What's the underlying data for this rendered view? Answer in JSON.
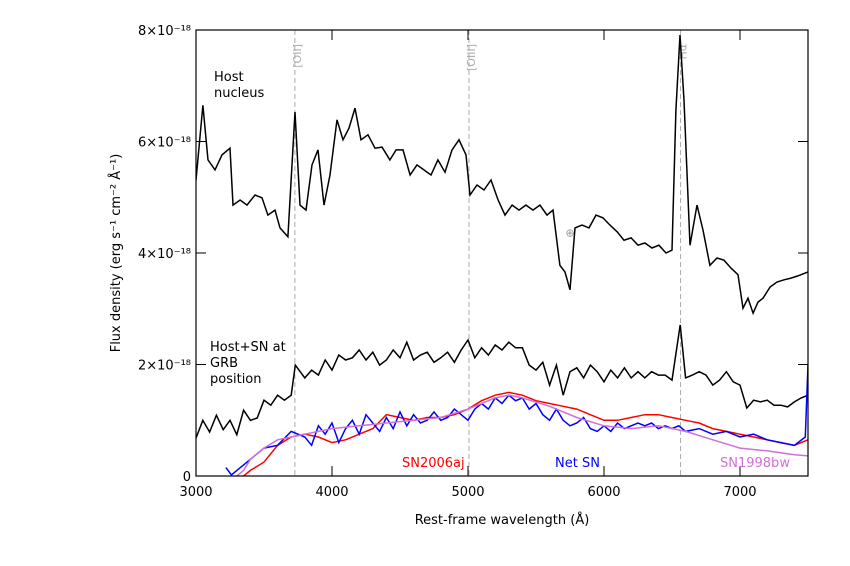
{
  "chart_data": {
    "type": "line",
    "xlabel": "Rest-frame wavelength (Å)",
    "ylabel": "Flux density (erg s⁻¹ cm⁻² Å⁻¹)",
    "xlim": [
      3000,
      7500
    ],
    "xticks": [
      3000,
      4000,
      5000,
      6000,
      7000
    ],
    "ylim": [
      0,
      8e-18
    ],
    "yticks": [
      0,
      {
        "value": 2e-18,
        "label": "2×10⁻¹⁸"
      },
      {
        "value": 4e-18,
        "label": "4×10⁻¹⁸"
      },
      {
        "value": 6e-18,
        "label": "6×10⁻¹⁸"
      },
      {
        "value": 8e-18,
        "label": "8×10⁻¹⁸"
      }
    ],
    "lines": [
      {
        "label": "[OII]",
        "x": 3727
      },
      {
        "label": "[OIII]",
        "x": 5007
      },
      {
        "label": "Hα",
        "x": 6563
      }
    ],
    "annotations": [
      {
        "text": "⊕",
        "x": 5750,
        "y": 4.3e-18
      }
    ],
    "series": [
      {
        "name": "Host nucleus",
        "color": "#000000",
        "x": [
          3000,
          3051,
          3088,
          3140,
          3191,
          3250,
          3272,
          3324,
          3375,
          3434,
          3485,
          3529,
          3581,
          3618,
          3676,
          3728,
          3765,
          3809,
          3853,
          3897,
          3941,
          3985,
          4037,
          4081,
          4125,
          4169,
          4213,
          4265,
          4316,
          4368,
          4426,
          4471,
          4522,
          4574,
          4625,
          4676,
          4728,
          4779,
          4831,
          4882,
          4934,
          4985,
          5015,
          5066,
          5118,
          5169,
          5221,
          5272,
          5324,
          5375,
          5426,
          5478,
          5529,
          5581,
          5625,
          5676,
          5713,
          5750,
          5787,
          5838,
          5890,
          5941,
          5993,
          6044,
          6096,
          6147,
          6199,
          6250,
          6301,
          6353,
          6404,
          6456,
          6500,
          6529,
          6559,
          6588,
          6632,
          6684,
          6728,
          6779,
          6831,
          6882,
          6934,
          6985,
          7022,
          7059,
          7096,
          7132,
          7169,
          7221,
          7272,
          7324,
          7375,
          7426,
          7500
        ],
        "values": [
          5.31e-18,
          6.65e-18,
          5.67e-18,
          5.49e-18,
          5.76e-18,
          5.88e-18,
          4.86e-18,
          4.95e-18,
          4.86e-18,
          5.04e-18,
          4.99e-18,
          4.68e-18,
          4.77e-18,
          4.45e-18,
          4.29e-18,
          6.53e-18,
          4.86e-18,
          4.77e-18,
          5.58e-18,
          5.85e-18,
          4.86e-18,
          5.4e-18,
          6.39e-18,
          6.03e-18,
          6.24e-18,
          6.6e-18,
          6.03e-18,
          6.12e-18,
          5.88e-18,
          5.9e-18,
          5.67e-18,
          5.85e-18,
          5.85e-18,
          5.4e-18,
          5.58e-18,
          5.49e-18,
          5.4e-18,
          5.67e-18,
          5.45e-18,
          5.85e-18,
          6.03e-18,
          5.76e-18,
          5.04e-18,
          5.22e-18,
          5.13e-18,
          5.31e-18,
          4.95e-18,
          4.68e-18,
          4.86e-18,
          4.77e-18,
          4.86e-18,
          4.77e-18,
          4.86e-18,
          4.68e-18,
          4.77e-18,
          3.78e-18,
          3.66e-18,
          3.34e-18,
          4.45e-18,
          4.5e-18,
          4.45e-18,
          4.68e-18,
          4.63e-18,
          4.5e-18,
          4.38e-18,
          4.23e-18,
          4.27e-18,
          4.14e-18,
          4.18e-18,
          4.09e-18,
          4.14e-18,
          4e-18,
          4.05e-18,
          6.56e-18,
          7.91e-18,
          6.74e-18,
          4.14e-18,
          4.86e-18,
          4.41e-18,
          3.78e-18,
          3.91e-18,
          3.87e-18,
          3.73e-18,
          3.61e-18,
          3.01e-18,
          3.19e-18,
          2.92e-18,
          3.12e-18,
          3.19e-18,
          3.39e-18,
          3.48e-18,
          3.52e-18,
          3.55e-18,
          3.59e-18,
          3.66e-18
        ]
      },
      {
        "name": "Host+SN at GRB position",
        "color": "#000000",
        "x": [
          3000,
          3050,
          3100,
          3150,
          3200,
          3250,
          3300,
          3350,
          3400,
          3450,
          3500,
          3550,
          3600,
          3650,
          3700,
          3730,
          3800,
          3850,
          3900,
          3950,
          4000,
          4050,
          4100,
          4150,
          4200,
          4250,
          4300,
          4350,
          4400,
          4450,
          4500,
          4550,
          4600,
          4650,
          4700,
          4750,
          4800,
          4850,
          4900,
          4950,
          5000,
          5050,
          5100,
          5150,
          5200,
          5250,
          5300,
          5350,
          5400,
          5450,
          5500,
          5550,
          5600,
          5650,
          5700,
          5750,
          5800,
          5850,
          5900,
          5950,
          6000,
          6050,
          6100,
          6150,
          6200,
          6250,
          6300,
          6350,
          6400,
          6450,
          6500,
          6560,
          6600,
          6650,
          6700,
          6750,
          6800,
          6850,
          6900,
          6950,
          7000,
          7050,
          7100,
          7150,
          7200,
          7250,
          7300,
          7350,
          7400,
          7450,
          7500
        ],
        "values": [
          6.8e-19,
          1e-18,
          7.9e-19,
          1.09e-18,
          8.3e-19,
          1e-18,
          7.4e-19,
          1.18e-18,
          1e-18,
          1.04e-18,
          1.36e-18,
          1.27e-18,
          1.45e-18,
          1.36e-18,
          1.45e-18,
          1.99e-18,
          1.76e-18,
          1.9e-18,
          1.81e-18,
          2.08e-18,
          1.9e-18,
          2.17e-18,
          2.08e-18,
          2.12e-18,
          2.26e-18,
          2.08e-18,
          2.22e-18,
          1.99e-18,
          2.08e-18,
          2.26e-18,
          2.12e-18,
          2.4e-18,
          2.08e-18,
          2.17e-18,
          2.22e-18,
          2.04e-18,
          2.12e-18,
          2.22e-18,
          2.04e-18,
          2.26e-18,
          2.44e-18,
          2.12e-18,
          2.3e-18,
          2.17e-18,
          2.35e-18,
          2.26e-18,
          2.4e-18,
          2.3e-18,
          2.3e-18,
          1.99e-18,
          1.9e-18,
          2.04e-18,
          1.63e-18,
          1.99e-18,
          1.45e-18,
          1.87e-18,
          1.94e-18,
          1.76e-18,
          1.99e-18,
          1.87e-18,
          1.69e-18,
          1.9e-18,
          1.76e-18,
          1.94e-18,
          1.76e-18,
          1.87e-18,
          1.76e-18,
          1.87e-18,
          1.81e-18,
          1.81e-18,
          1.72e-18,
          2.71e-18,
          1.76e-18,
          1.81e-18,
          1.87e-18,
          1.81e-18,
          1.63e-18,
          1.72e-18,
          1.87e-18,
          1.69e-18,
          1.63e-18,
          1.22e-18,
          1.36e-18,
          1.33e-18,
          1.36e-18,
          1.27e-18,
          1.27e-18,
          1.24e-18,
          1.33e-18,
          1.4e-18,
          1.45e-18
        ]
      },
      {
        "name": "SN2006aj",
        "color": "#ff0000",
        "x": [
          3350,
          3400,
          3500,
          3600,
          3700,
          3800,
          3900,
          4000,
          4100,
          4200,
          4300,
          4400,
          4500,
          4600,
          4700,
          4800,
          4900,
          5000,
          5100,
          5200,
          5300,
          5400,
          5500,
          5600,
          5700,
          5800,
          5900,
          6000,
          6100,
          6200,
          6300,
          6400,
          6500,
          6600,
          6700,
          6800,
          6900,
          7000,
          7100,
          7200,
          7300,
          7400,
          7500
        ],
        "values": [
          0,
          1e-19,
          2.5e-19,
          5.5e-19,
          7e-19,
          7.5e-19,
          7e-19,
          6e-19,
          6.5e-19,
          7.5e-19,
          8.5e-19,
          1.1e-18,
          1.05e-18,
          1e-18,
          1.05e-18,
          1.05e-18,
          1.1e-18,
          1.2e-18,
          1.35e-18,
          1.45e-18,
          1.5e-18,
          1.45e-18,
          1.35e-18,
          1.3e-18,
          1.25e-18,
          1.2e-18,
          1.1e-18,
          1e-18,
          1e-18,
          1.05e-18,
          1.1e-18,
          1.1e-18,
          1.05e-18,
          1e-18,
          9.5e-19,
          8.5e-19,
          8e-19,
          7.5e-19,
          7e-19,
          6.5e-19,
          6e-19,
          5.5e-19,
          6.5e-19
        ]
      },
      {
        "name": "Net SN",
        "color": "#0000ff",
        "x": [
          3220,
          3260,
          3400,
          3500,
          3600,
          3700,
          3800,
          3850,
          3900,
          3950,
          4000,
          4050,
          4100,
          4150,
          4200,
          4250,
          4300,
          4350,
          4400,
          4450,
          4500,
          4550,
          4600,
          4650,
          4700,
          4750,
          4800,
          4850,
          4900,
          4950,
          5000,
          5050,
          5100,
          5150,
          5200,
          5250,
          5300,
          5350,
          5400,
          5450,
          5500,
          5550,
          5600,
          5650,
          5700,
          5750,
          5800,
          5850,
          5900,
          5950,
          6000,
          6050,
          6100,
          6150,
          6200,
          6250,
          6300,
          6350,
          6400,
          6450,
          6500,
          6550,
          6600,
          6700,
          6800,
          6900,
          7000,
          7100,
          7200,
          7300,
          7400,
          7480,
          7500
        ],
        "values": [
          1.5e-19,
          2e-20,
          3e-19,
          5e-19,
          5.5e-19,
          8e-19,
          7e-19,
          5.5e-19,
          9e-19,
          7.5e-19,
          9.5e-19,
          6e-19,
          8.5e-19,
          1e-18,
          7.5e-19,
          1.1e-18,
          9.5e-19,
          8e-19,
          1.05e-18,
          8.5e-19,
          1.15e-18,
          9e-19,
          1.1e-18,
          9.5e-19,
          1e-18,
          1.15e-18,
          1e-18,
          1.05e-18,
          1.2e-18,
          1.1e-18,
          1e-18,
          1.2e-18,
          1.3e-18,
          1.2e-18,
          1.4e-18,
          1.3e-18,
          1.45e-18,
          1.35e-18,
          1.4e-18,
          1.2e-18,
          1.3e-18,
          1.1e-18,
          1e-18,
          1.2e-18,
          1e-18,
          9e-19,
          9.5e-19,
          1.05e-18,
          8.5e-19,
          8e-19,
          9e-19,
          8e-19,
          9.5e-19,
          8.5e-19,
          9e-19,
          9.5e-19,
          9e-19,
          9.5e-19,
          8.5e-19,
          9e-19,
          8.5e-19,
          9e-19,
          8e-19,
          8.5e-19,
          7.5e-19,
          8e-19,
          7e-19,
          7.5e-19,
          6.5e-19,
          6e-19,
          5.5e-19,
          7e-19,
          2e-18
        ]
      },
      {
        "name": "SN1998bw",
        "color": "#d070d8",
        "x": [
          3300,
          3350,
          3400,
          3500,
          3600,
          3700,
          3800,
          3900,
          4000,
          4200,
          4400,
          4600,
          4800,
          5000,
          5200,
          5300,
          5400,
          5600,
          5800,
          6000,
          6200,
          6400,
          6600,
          6800,
          7000,
          7200,
          7400,
          7500
        ],
        "values": [
          0,
          1e-19,
          3e-19,
          5e-19,
          6.5e-19,
          7e-19,
          7.5e-19,
          8e-19,
          8.5e-19,
          9e-19,
          9.5e-19,
          1e-18,
          1.05e-18,
          1.2e-18,
          1.4e-18,
          1.45e-18,
          1.4e-18,
          1.25e-18,
          1.05e-18,
          9e-19,
          8.5e-19,
          9e-19,
          8e-19,
          6.5e-19,
          5e-19,
          4.5e-19,
          3.8e-19,
          3.6e-19
        ]
      }
    ]
  }
}
